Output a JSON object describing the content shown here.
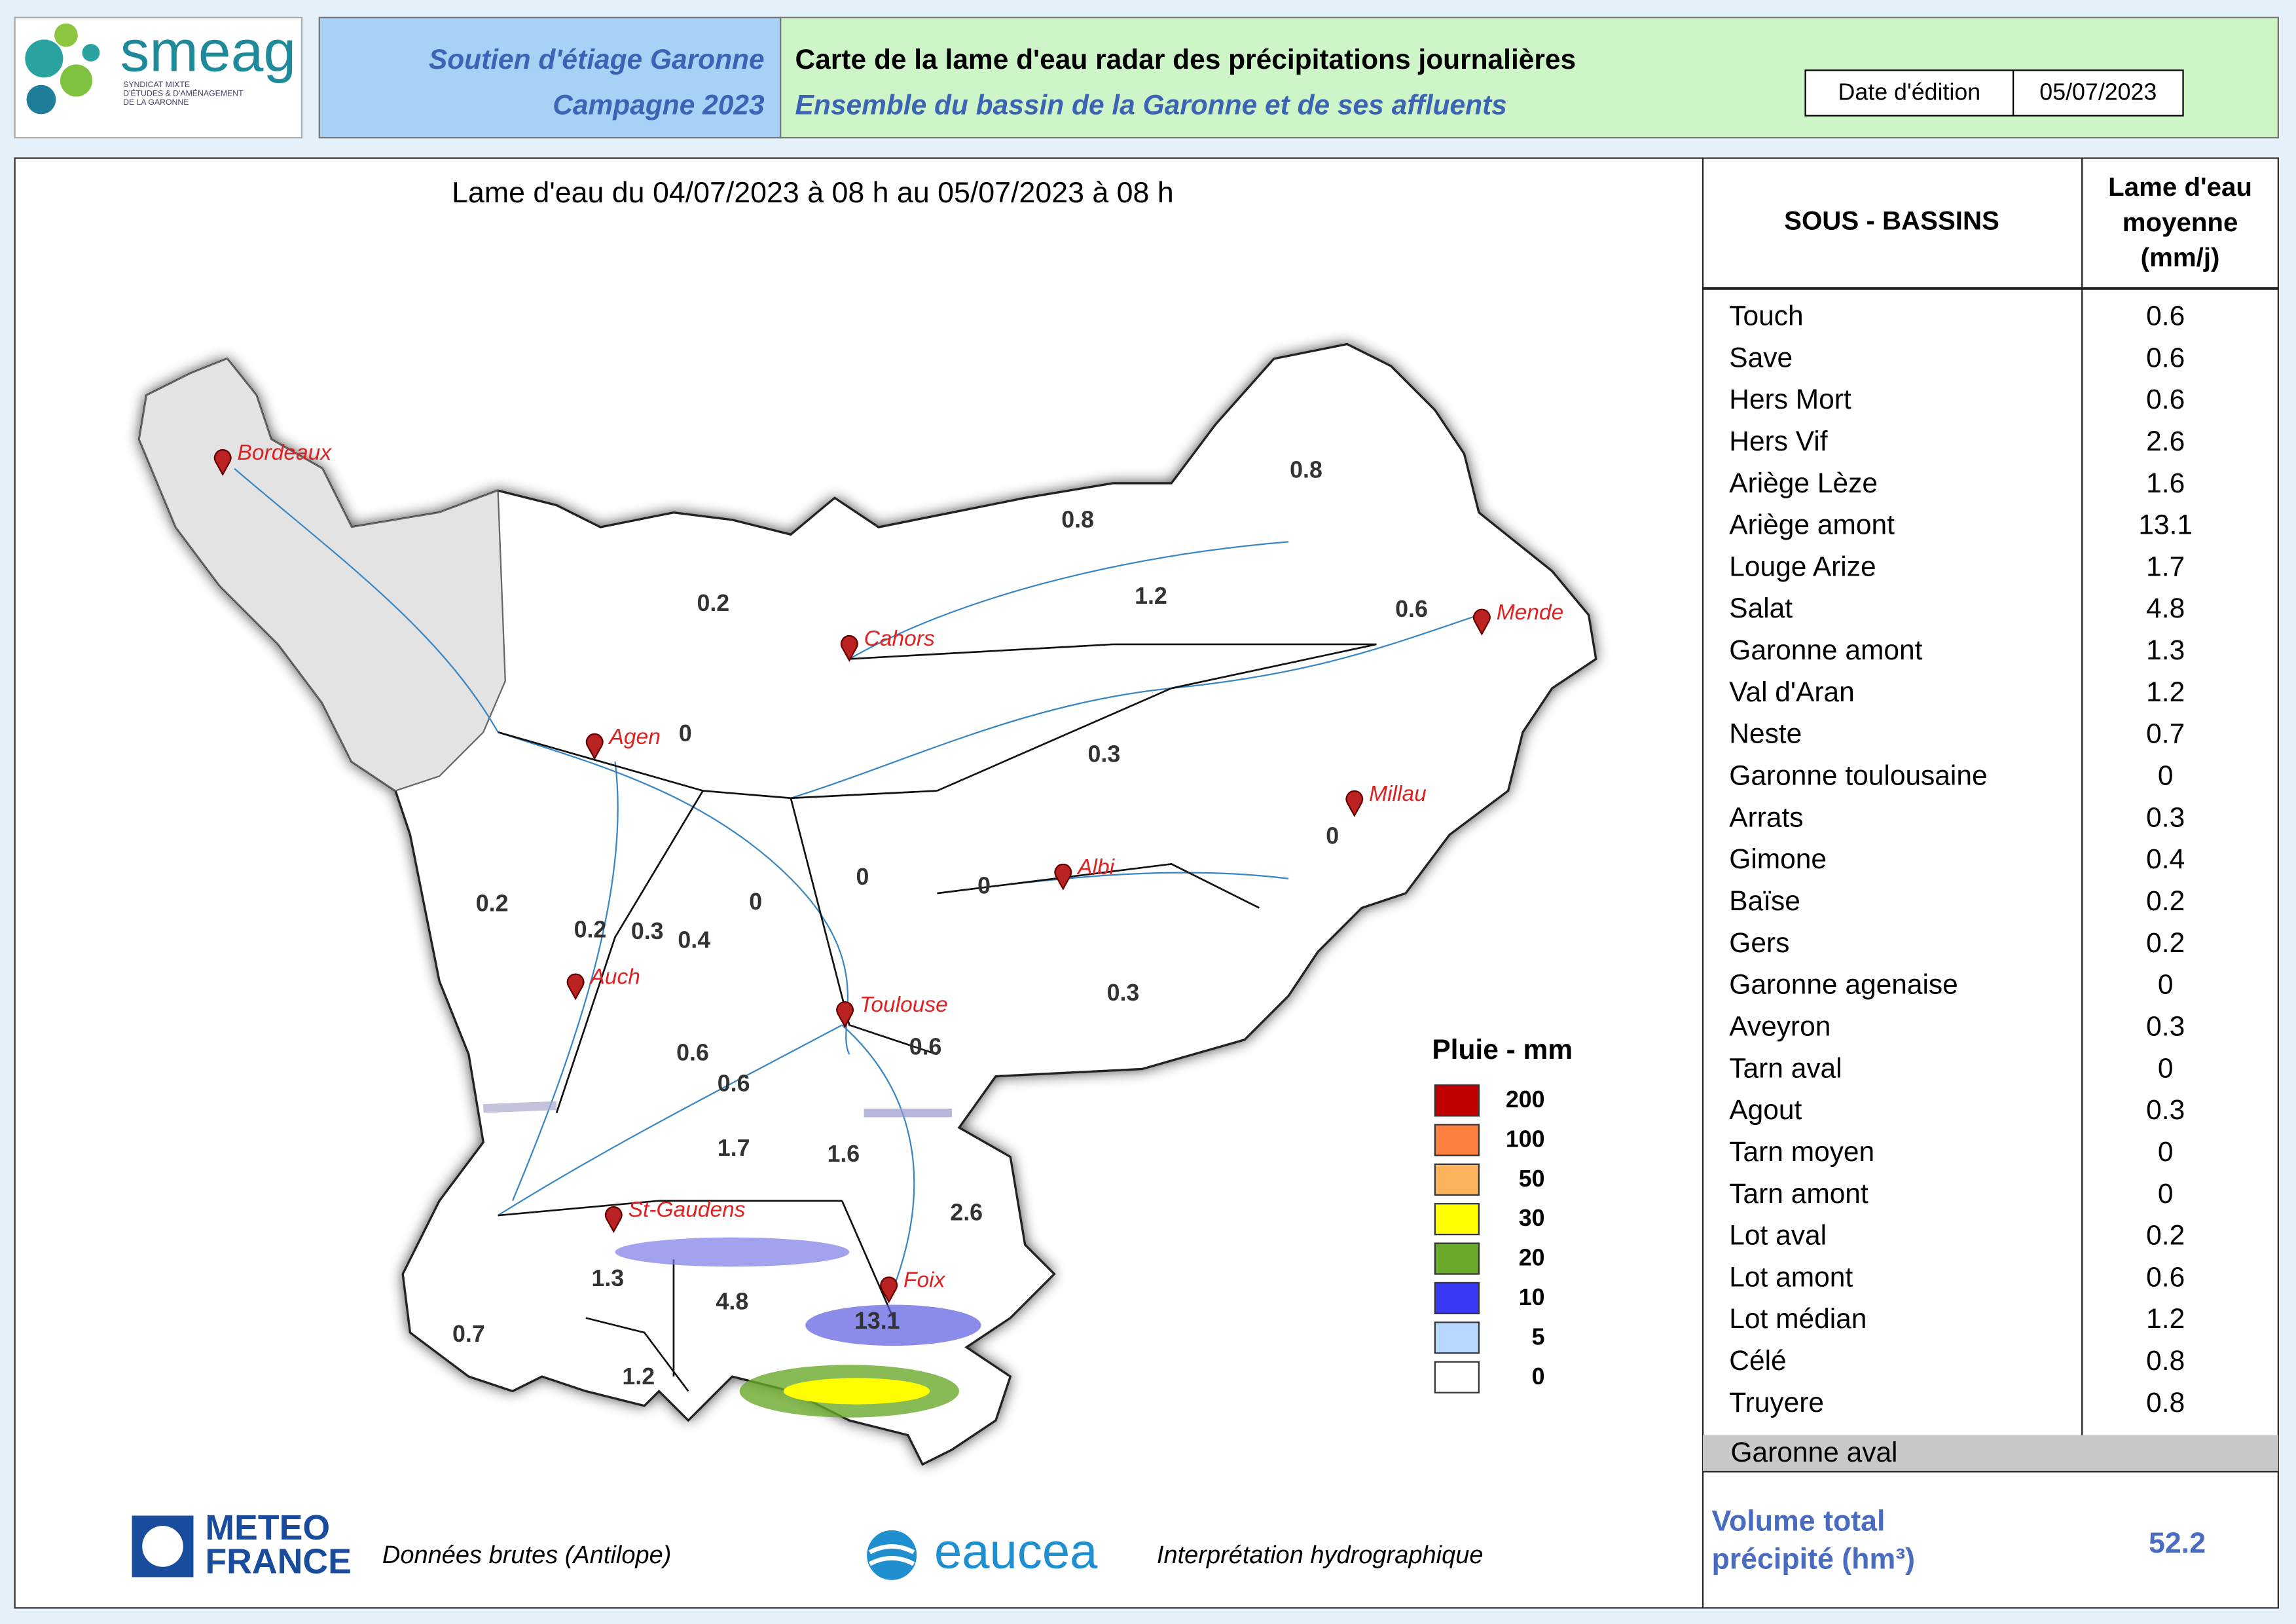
{
  "header": {
    "logo_text": "smeag",
    "logo_subtitle": [
      "SYNDICAT MIXTE",
      "D'ÉTUDES & D'AMÉNAGEMENT",
      "DE LA GARONNE"
    ],
    "program": "Soutien d'étiage Garonne",
    "campaign": "Campagne 2023",
    "title": "Carte de la lame d'eau radar des précipitations journalières",
    "subtitle": "Ensemble du bassin de la Garonne et de ses affluents",
    "date_label": "Date d'édition",
    "date": "05/07/2023"
  },
  "map": {
    "period": "Lame d'eau du 04/07/2023  à 08 h au  05/07/2023  à 08 h",
    "cities": [
      "Bordeaux",
      "Cahors",
      "Mende",
      "Agen",
      "Millau",
      "Albi",
      "Auch",
      "Toulouse",
      "St-Gaudens",
      "Foix"
    ],
    "basin_values": [
      0.8,
      0.8,
      0.2,
      1.2,
      0.6,
      0,
      0.3,
      0,
      0,
      0,
      0.2,
      0.2,
      0.3,
      0.4,
      0,
      0.3,
      0.6,
      0.6,
      0.6,
      1.7,
      1.6,
      2.6,
      1.3,
      4.8,
      13.1,
      0.7,
      1.2
    ],
    "legend": {
      "title": "Pluie - mm",
      "classes": [
        {
          "value": 200,
          "color": "#c00000"
        },
        {
          "value": 100,
          "color": "#ff7f3f"
        },
        {
          "value": 50,
          "color": "#fbb45c"
        },
        {
          "value": 30,
          "color": "#ffff00"
        },
        {
          "value": 20,
          "color": "#6aaa2a"
        },
        {
          "value": 10,
          "color": "#3a3af5"
        },
        {
          "value": 5,
          "color": "#b8d8ff"
        },
        {
          "value": 0,
          "color": "#ffffff"
        }
      ]
    }
  },
  "table": {
    "headers": [
      "SOUS - BASSINS",
      [
        "Lame d'eau",
        "moyenne",
        "(mm/j)"
      ]
    ],
    "rows": [
      [
        "Touch",
        0.6
      ],
      [
        "Save",
        0.6
      ],
      [
        "Hers Mort",
        0.6
      ],
      [
        "Hers Vif",
        2.6
      ],
      [
        "Ariège Lèze",
        1.6
      ],
      [
        "Ariège amont",
        13.1
      ],
      [
        "Louge Arize",
        1.7
      ],
      [
        "Salat",
        4.8
      ],
      [
        "Garonne amont",
        1.3
      ],
      [
        "Val d'Aran",
        1.2
      ],
      [
        "Neste",
        0.7
      ],
      [
        "Garonne toulousaine",
        0
      ],
      [
        "Arrats",
        0.3
      ],
      [
        "Gimone",
        0.4
      ],
      [
        "Baïse",
        0.2
      ],
      [
        "Gers",
        0.2
      ],
      [
        "Garonne agenaise",
        0
      ],
      [
        "Aveyron",
        0.3
      ],
      [
        "Tarn aval",
        0
      ],
      [
        "Agout",
        0.3
      ],
      [
        "Tarn moyen",
        0
      ],
      [
        "Tarn amont",
        0
      ],
      [
        "Lot aval",
        0.2
      ],
      [
        "Lot amont",
        0.6
      ],
      [
        "Lot médian",
        1.2
      ],
      [
        "Célé",
        0.8
      ],
      [
        "Truyere",
        0.8
      ]
    ],
    "excluded_row": "Garonne aval",
    "total_label": [
      "Volume total",
      "précipité (hm³)"
    ],
    "total": 52.2
  },
  "footer": {
    "meteo_logo": [
      "METEO",
      "FRANCE"
    ],
    "meteo_caption": "Données brutes (Antilope)",
    "eaucea_logo": "eaucea",
    "eaucea_caption": "Interprétation hydrographique"
  }
}
